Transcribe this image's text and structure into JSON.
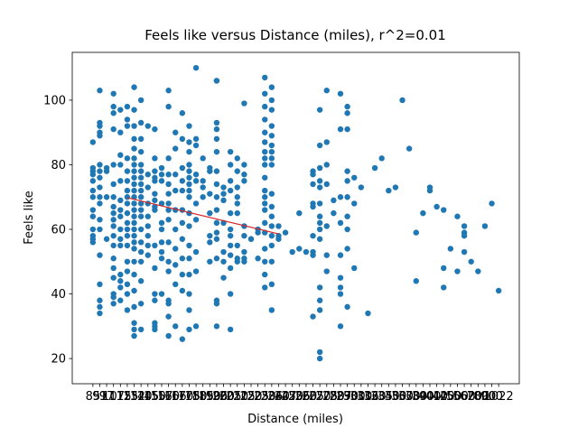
{
  "chart_data": {
    "type": "scatter",
    "title": "Feels like versus Distance (miles), r^2=0.01",
    "x_label": "Distance (miles)",
    "y_label": "Feels like",
    "color": "#1f77b4",
    "categories": [
      "85",
      "91",
      "97",
      "107",
      "115",
      "125",
      "132",
      "140",
      "145",
      "150",
      "157",
      "160",
      "166",
      "170",
      "175",
      "180",
      "185",
      "190",
      "196",
      "200",
      "205",
      "210",
      "215",
      "220",
      "225",
      "230",
      "236",
      "240",
      "247",
      "250",
      "256",
      "260",
      "265",
      "270",
      "275",
      "280",
      "287",
      "290",
      "300",
      "310",
      "316",
      "320",
      "335",
      "340",
      "350",
      "360",
      "370",
      "380",
      "390",
      "400",
      "410",
      "420",
      "450",
      "500",
      "560",
      "620",
      "700",
      "800",
      "900",
      "1022"
    ],
    "values": [
      [
        87,
        79,
        78,
        77,
        75,
        72,
        70,
        66,
        64,
        60,
        58,
        57,
        56
      ],
      [
        103,
        93,
        92,
        90,
        89,
        80,
        78,
        76,
        73,
        70,
        68,
        63,
        60,
        52,
        43,
        38,
        36,
        34
      ],
      [
        79,
        78,
        70,
        57
      ],
      [
        102,
        98,
        96,
        91,
        80,
        74,
        70,
        67,
        65,
        63,
        61,
        58,
        55,
        51,
        48,
        45,
        40,
        39,
        37
      ],
      [
        97,
        90,
        83,
        80,
        75,
        69,
        66,
        64,
        60,
        57,
        55,
        46,
        44,
        42,
        38
      ],
      [
        98,
        94,
        92,
        82,
        78,
        75,
        72,
        70,
        68,
        65,
        62,
        60,
        58,
        55,
        50,
        47,
        43,
        40,
        35
      ],
      [
        104,
        97,
        92,
        88,
        85,
        82,
        80,
        78,
        76,
        74,
        72,
        70,
        68,
        66,
        64,
        62,
        60,
        58,
        56,
        54,
        50,
        46,
        41,
        36,
        31,
        29,
        27
      ],
      [
        100,
        93,
        88,
        84,
        80,
        78,
        76,
        74,
        72,
        70,
        68,
        66,
        64,
        60,
        56,
        53,
        50,
        44,
        37,
        29
      ],
      [
        92,
        77,
        73,
        68,
        64,
        61,
        58,
        55,
        52
      ],
      [
        91,
        82,
        78,
        76,
        75,
        71,
        69,
        67,
        66,
        55,
        48,
        40,
        38,
        31,
        30,
        29
      ],
      [
        79,
        77,
        75,
        68,
        62,
        60,
        56,
        53,
        51,
        40
      ],
      [
        103,
        98,
        82,
        77,
        74,
        71,
        68,
        66,
        63,
        56,
        50,
        47,
        38,
        37,
        33,
        27
      ],
      [
        90,
        85,
        77,
        72,
        66,
        60,
        54,
        49,
        43,
        30
      ],
      [
        96,
        88,
        79,
        75,
        72,
        66,
        62,
        57,
        51,
        46,
        41,
        26
      ],
      [
        92,
        87,
        84,
        80,
        78,
        76,
        74,
        72,
        70,
        65,
        61,
        55,
        51,
        46,
        40,
        35,
        29
      ],
      [
        110,
        88,
        86,
        77,
        75,
        68,
        63,
        53,
        47,
        30
      ],
      [
        82,
        75,
        73,
        70
      ],
      [
        79,
        78,
        71,
        65,
        58,
        56,
        50
      ],
      [
        106,
        106,
        93,
        91,
        88,
        84,
        78,
        74,
        70,
        66,
        62,
        59,
        57,
        51,
        38,
        37,
        30
      ],
      [
        73,
        71,
        69,
        62,
        53,
        50,
        45
      ],
      [
        84,
        80,
        75,
        72,
        65,
        60,
        58,
        55,
        52,
        48,
        40,
        29
      ],
      [
        82,
        78,
        73,
        70,
        68,
        65,
        55,
        51,
        50
      ],
      [
        99,
        80,
        77,
        75,
        61,
        58,
        53,
        51,
        50
      ],
      [
        57,
        57
      ],
      [
        60,
        59,
        51
      ],
      [
        107,
        102,
        98,
        94,
        90,
        87,
        84,
        82,
        80,
        76,
        72,
        70,
        68,
        66,
        62,
        59,
        54,
        50,
        46,
        42
      ],
      [
        104,
        100,
        97,
        92,
        89,
        86,
        84,
        82,
        80,
        71,
        67,
        64,
        61,
        58,
        55,
        50,
        43,
        35
      ],
      [
        57,
        61,
        58
      ],
      [
        59
      ],
      [
        53
      ],
      [
        65,
        54
      ],
      [
        53
      ],
      [
        78,
        77,
        74,
        68,
        67,
        58,
        53,
        52,
        33
      ],
      [
        97,
        86,
        79,
        75,
        73,
        68,
        64,
        62,
        60,
        57,
        42,
        38,
        35,
        22,
        20
      ],
      [
        103,
        87,
        80,
        74,
        61,
        52,
        47
      ],
      [
        69,
        65
      ],
      [
        102,
        91,
        70,
        62,
        52,
        45,
        42,
        40,
        30
      ],
      [
        98,
        96,
        91,
        78,
        75,
        70,
        64,
        60,
        54,
        36
      ],
      [
        76,
        68,
        48
      ],
      [
        73
      ],
      [
        34
      ],
      [
        79
      ],
      [
        82
      ],
      [
        72
      ],
      [
        73
      ],
      [
        100
      ],
      [
        85
      ],
      [
        59,
        44
      ],
      [
        65
      ],
      [
        73,
        72
      ],
      [
        67
      ],
      [
        66,
        48,
        42
      ],
      [
        54
      ],
      [
        64,
        47
      ],
      [
        61,
        59,
        58,
        53
      ],
      [
        50
      ],
      [
        47
      ],
      [
        61
      ],
      [
        68
      ],
      [
        41
      ]
    ],
    "trend": {
      "color": "#d62728",
      "x": [
        "125",
        "240"
      ],
      "y": [
        69.8,
        58.6
      ]
    },
    "xlim": [
      -3,
      62
    ],
    "ylim": [
      12.2,
      114.8
    ],
    "yticks": [
      20,
      40,
      60,
      80,
      100
    ]
  }
}
